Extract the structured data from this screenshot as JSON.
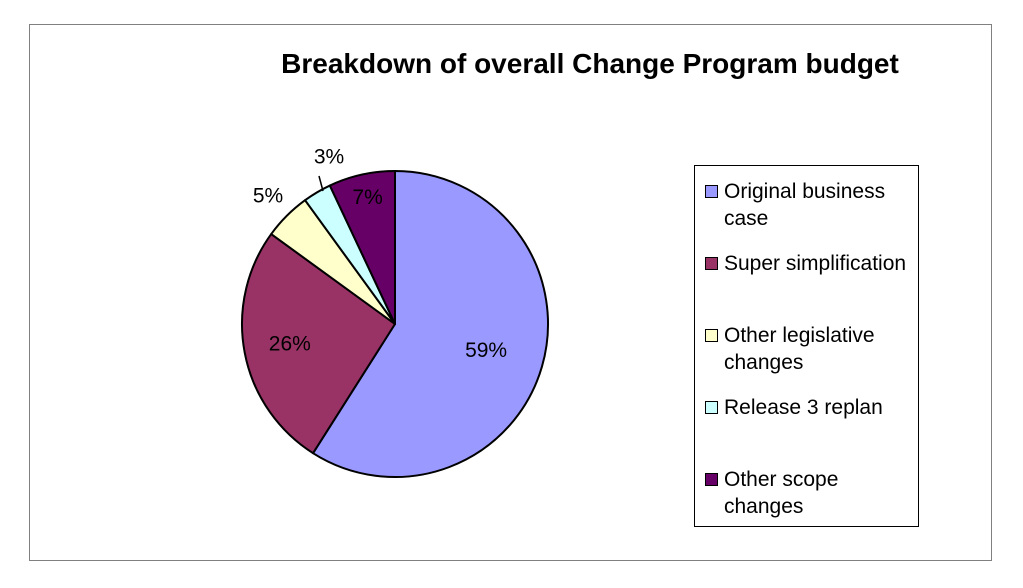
{
  "chart_data": {
    "type": "pie",
    "title": "Breakdown of overall Change Program budget",
    "categories": [
      "Original business case",
      "Super simplification",
      "Other legislative changes",
      "Release 3 replan",
      "Other scope changes"
    ],
    "values": [
      59,
      26,
      5,
      3,
      7
    ],
    "labels": [
      "59%",
      "26%",
      "5%",
      "3%",
      "7%"
    ],
    "colors": [
      "#9999ff",
      "#993366",
      "#ffffcc",
      "#ccffff",
      "#660066"
    ],
    "legend_position": "right"
  }
}
